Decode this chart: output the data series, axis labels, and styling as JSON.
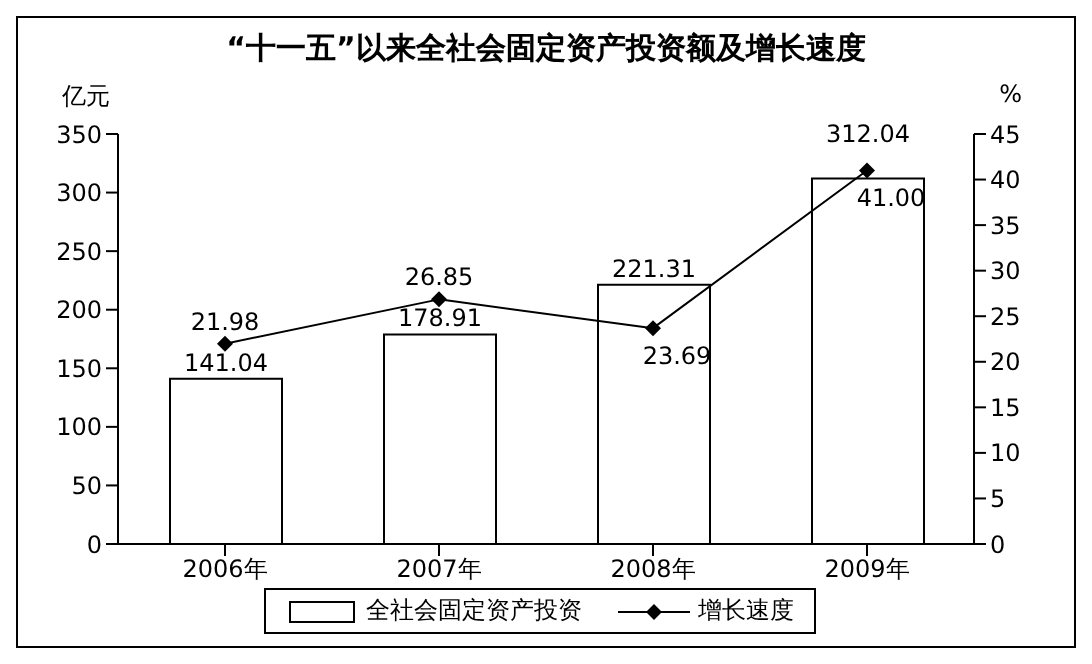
{
  "chart_data": {
    "type": "bar",
    "title": "“十一五”以来全社会固定资产投资额及增长速度",
    "ylabel": "亿元",
    "y2label": "%",
    "categories": [
      "2006年",
      "2007年",
      "2008年",
      "2009年"
    ],
    "series": [
      {
        "name": "全社会固定资产投资",
        "color": "#ffffff",
        "values": [
          141.04,
          178.91,
          221.31,
          312.04
        ],
        "value_labels": [
          "141.04",
          "178.91",
          "221.31",
          "312.04"
        ]
      },
      {
        "name": "增长速度",
        "type": "line",
        "axis": "y2",
        "color": "#000000",
        "marker": "diamond",
        "values": [
          21.98,
          26.85,
          23.69,
          41.0
        ],
        "value_labels": [
          "21.98",
          "26.85",
          "23.69",
          "41.00"
        ]
      }
    ],
    "ylim": [
      0,
      350
    ],
    "yticks": [
      0,
      50,
      100,
      150,
      200,
      250,
      300,
      350
    ],
    "y2lim": [
      0,
      45
    ],
    "y2ticks": [
      0,
      5,
      10,
      15,
      20,
      25,
      30,
      35,
      40,
      45
    ],
    "grid": false,
    "legend": "bottom"
  }
}
